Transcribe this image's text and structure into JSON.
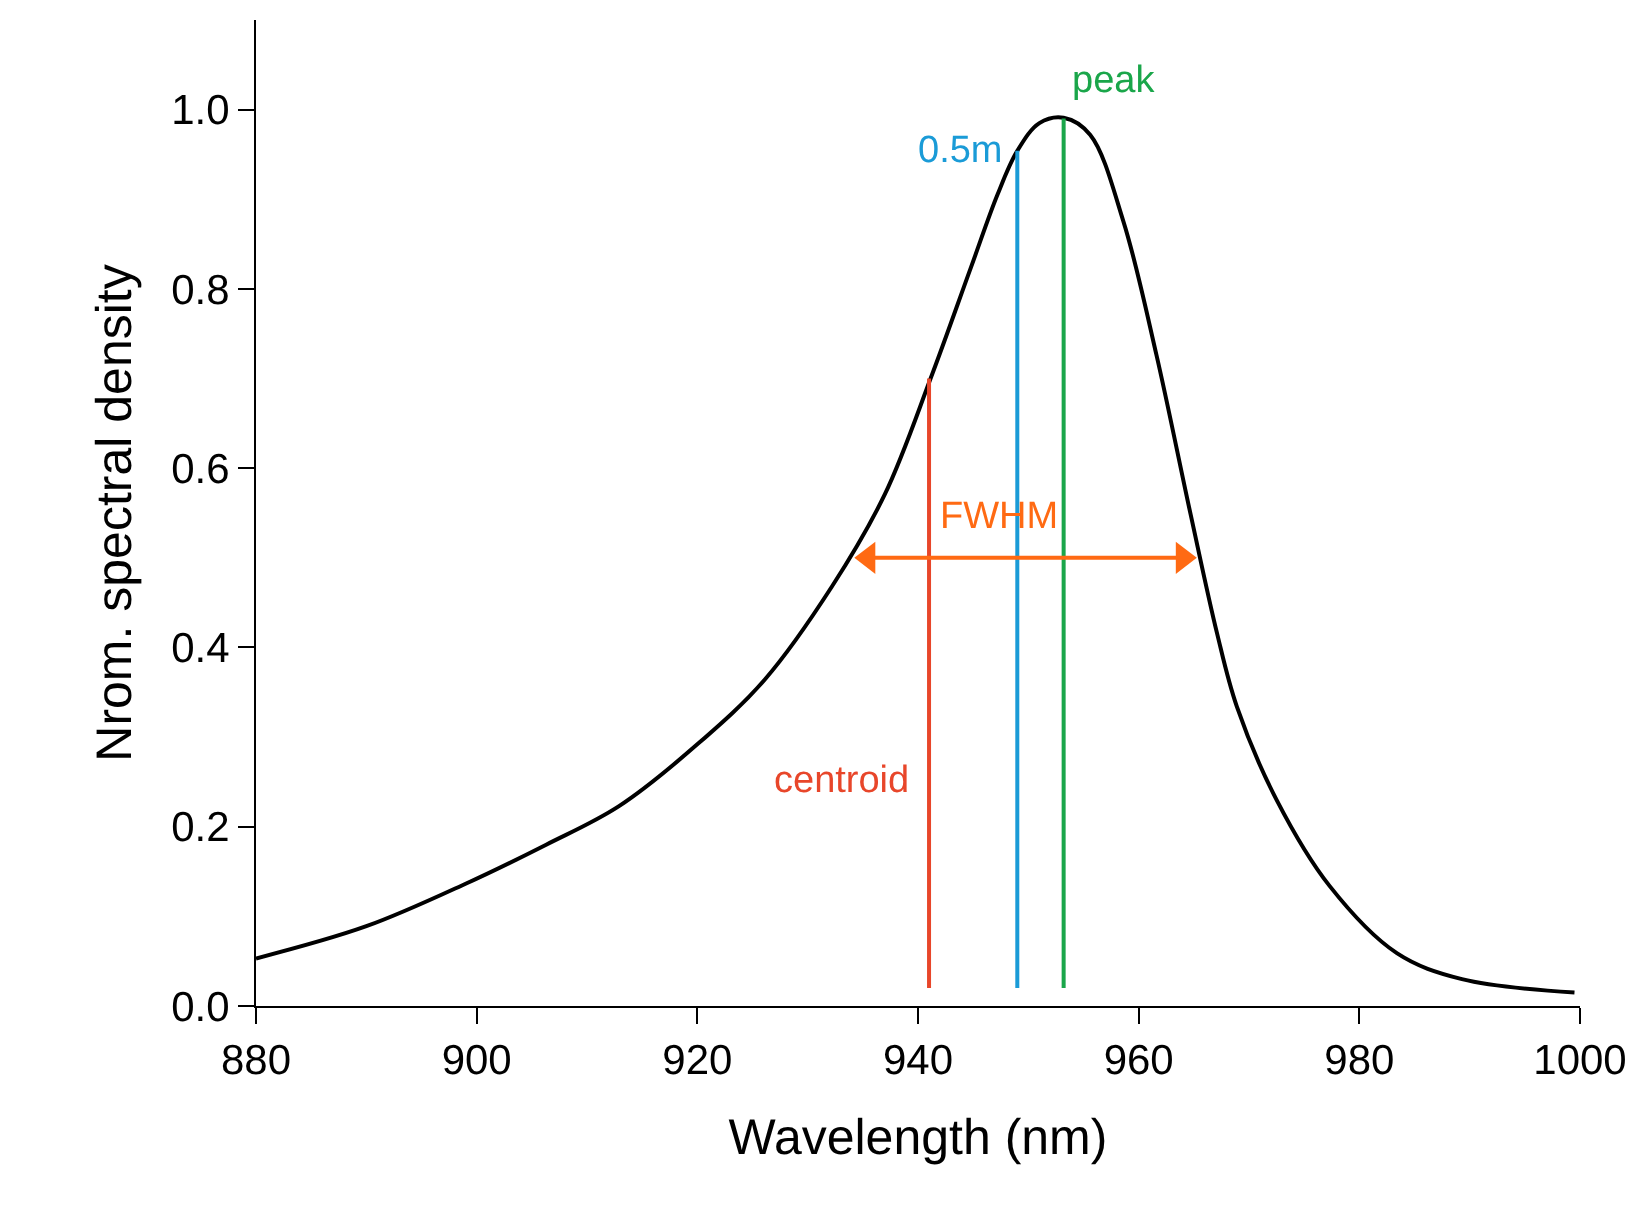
{
  "chart_data": {
    "type": "line",
    "xlabel": "Wavelength (nm)",
    "ylabel": "Nrom. spectral density",
    "xlim": [
      880,
      1000
    ],
    "xticks": [
      880,
      900,
      920,
      940,
      960,
      980,
      1000
    ],
    "ylim": [
      0,
      1.1
    ],
    "yticks": [
      {
        "value": 0,
        "label": "0.0"
      },
      {
        "value": 0.2,
        "label": "0.2"
      },
      {
        "value": 0.4,
        "label": "0.4"
      },
      {
        "value": 0.6,
        "label": "0.6"
      },
      {
        "value": 0.8,
        "label": "0.8"
      },
      {
        "value": 1,
        "label": "1.0"
      }
    ],
    "legend": false,
    "marker": "none",
    "line_style": "solid",
    "series": [
      {
        "color": "#000000",
        "x": [
          880,
          890,
          899.1,
          906.3,
          912.9,
          920.1,
          926.1,
          932.2,
          937,
          941.2,
          944.8,
          947.2,
          949,
          951,
          953.2,
          955.6,
          958.6,
          961.6,
          964.7,
          967.1,
          968.9,
          972.5,
          977.3,
          983.4,
          989.3,
          999.5
        ],
        "values": [
          0.053,
          0.089,
          0.137,
          0.18,
          0.223,
          0.293,
          0.364,
          0.468,
          0.571,
          0.702,
          0.824,
          0.905,
          0.954,
          0.985,
          0.991,
          0.972,
          0.876,
          0.727,
          0.549,
          0.416,
          0.334,
          0.23,
          0.134,
          0.059,
          0.03,
          0.015
        ]
      },
      {
        "name": "centroid",
        "color": "#e8462a",
        "x": [
          941,
          941
        ],
        "values": [
          0.02,
          0.7
        ]
      },
      {
        "name": "0.5m",
        "color": "#1a9bd7",
        "x": [
          949,
          949
        ],
        "values": [
          0.02,
          0.954
        ]
      },
      {
        "name": "peak",
        "color": "#1aa64a",
        "x": [
          953.2,
          953.2
        ],
        "values": [
          0.02,
          0.99
        ]
      },
      {
        "name": "FWHM",
        "color": "#ff6a13",
        "x": [
          935.5,
          964
        ],
        "values": [
          0.5,
          0.5
        ],
        "marker": "triangle"
      }
    ]
  }
}
